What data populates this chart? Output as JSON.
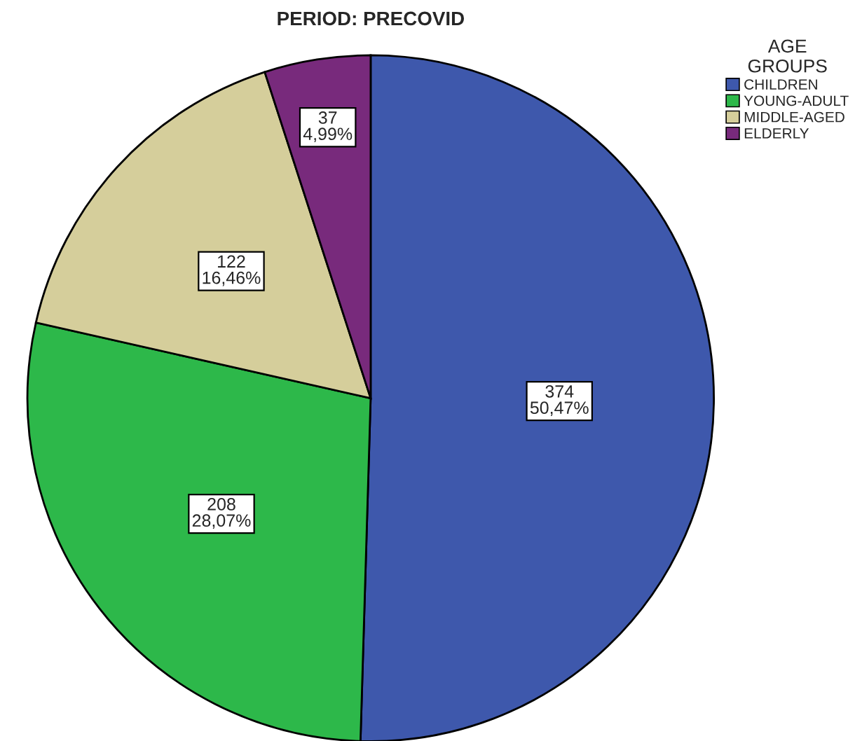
{
  "chart_data": {
    "type": "pie",
    "title": "PERIOD: PRECOVID",
    "legend_title": "AGE\nGROUPS",
    "legend": "top right",
    "categories": [
      "CHILDREN",
      "YOUNG-ADULT",
      "MIDDLE-AGED",
      "ELDERLY"
    ],
    "values": [
      374,
      208,
      122,
      37
    ],
    "colors": [
      "#3e58ac",
      "#2db84a",
      "#d5ce9b",
      "#782a7c"
    ],
    "value_labels": [
      "374\n50,47%",
      "208\n28,07%",
      "122\n16,46%",
      "37\n4,99%"
    ]
  }
}
